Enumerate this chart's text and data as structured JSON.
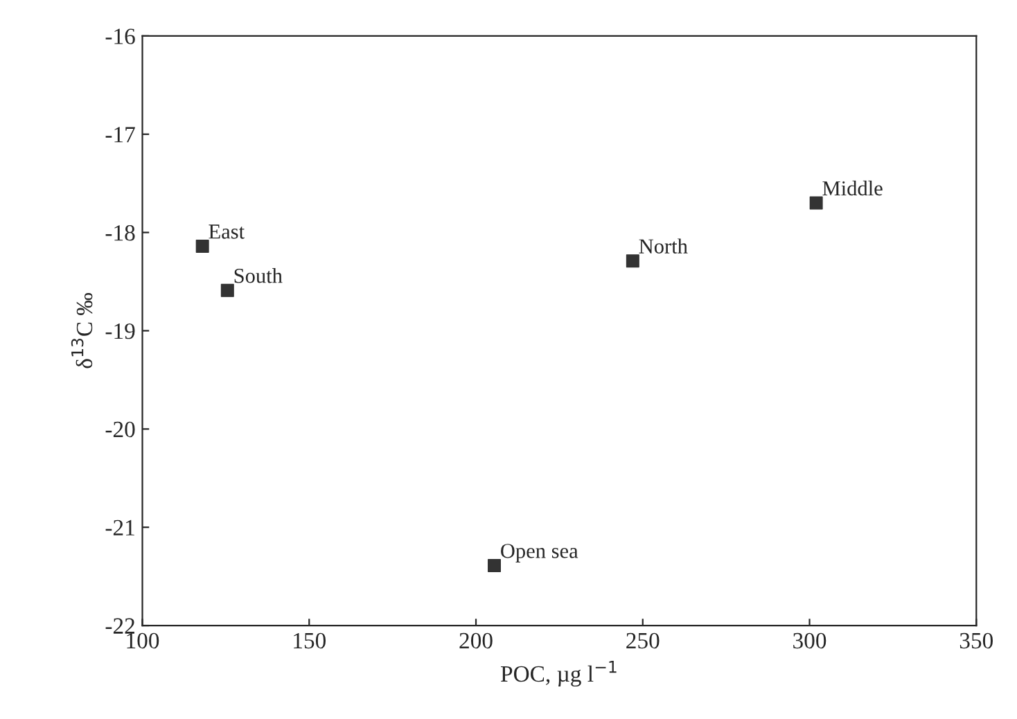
{
  "chart_data": {
    "type": "scatter",
    "xlabel": "POC, µg l$^{−1}$",
    "ylabel": "δ$^{13}$C ‰",
    "x": [
      118,
      125.5,
      247,
      302,
      205.5
    ],
    "series": [
      {
        "color": "#333333",
        "values": [
          -18.14,
          -18.59,
          -18.29,
          -17.7,
          -21.39
        ]
      }
    ],
    "marker": "square",
    "xlim": [
      100,
      350
    ],
    "xticks": [
      100,
      150,
      200,
      250,
      300,
      350
    ],
    "ylim": [
      -22,
      -16
    ],
    "yticks": [
      -22,
      -21,
      -20,
      -19,
      -18,
      -17,
      -16
    ],
    "grid": false,
    "annotations": [
      {
        "text": "East",
        "x": 118,
        "y": -18.14
      },
      {
        "text": "South",
        "x": 125.5,
        "y": -18.59
      },
      {
        "text": "North",
        "x": 247,
        "y": -18.29
      },
      {
        "text": "Middle",
        "x": 302,
        "y": -17.7
      },
      {
        "text": "Open sea",
        "x": 205.5,
        "y": -21.39
      }
    ]
  }
}
